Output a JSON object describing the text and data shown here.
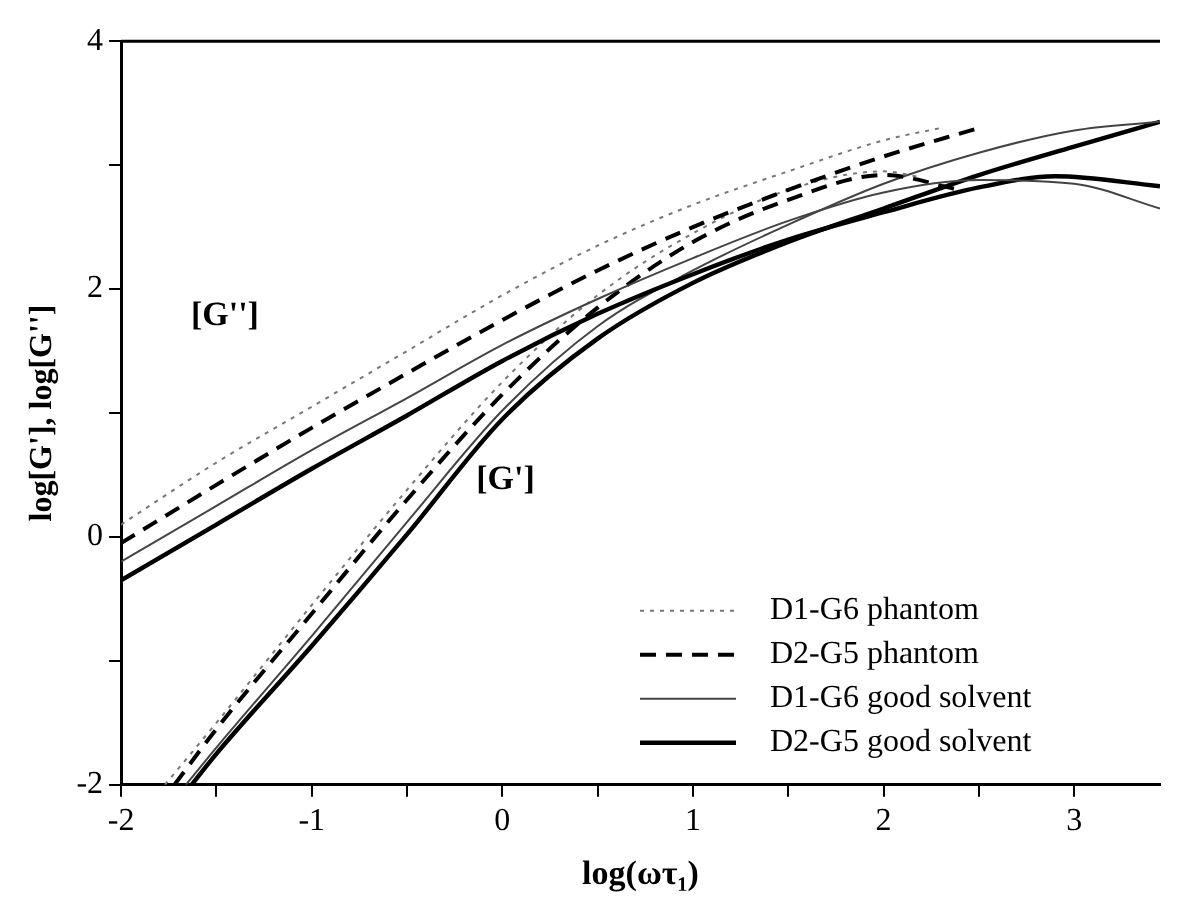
{
  "chart_data": {
    "type": "line",
    "xlabel": "log(ωτ₁)",
    "ylabel": "log[G'], log[G'']",
    "xlim": [
      -2,
      3.45
    ],
    "xticks": [
      -2,
      {
        "value": -1.5,
        "label": null
      },
      -1,
      {
        "value": -0.5,
        "label": null
      },
      0,
      {
        "value": 0.5,
        "label": null
      },
      1,
      {
        "value": 1.5,
        "label": null
      },
      2,
      {
        "value": 2.5,
        "label": null
      },
      3
    ],
    "ylim": [
      -2,
      4
    ],
    "yticks": [
      -2,
      {
        "value": -1,
        "label": null
      },
      0,
      {
        "value": 1,
        "label": null
      },
      2,
      {
        "value": 3,
        "label": null
      },
      4
    ],
    "grid": false,
    "legend": "bottom right",
    "marker": "none",
    "annotations": [
      "[G'']",
      "[G']"
    ],
    "series": [
      {
        "name": "D1-G6 phantom",
        "color": "#777777",
        "line_style": "dotted",
        "x": [
          -2,
          -1.5,
          -1,
          -0.5,
          0,
          0.5,
          1,
          1.5,
          2,
          2.3
        ],
        "values": [
          0.1,
          0.6,
          1.05,
          1.5,
          1.95,
          2.35,
          2.68,
          2.95,
          3.2,
          3.3
        ]
      },
      {
        "name": "D2-G5 phantom",
        "color": "#000000",
        "line_style": "dashed",
        "x": [
          -2,
          -1.5,
          -1,
          -0.5,
          0,
          0.5,
          1,
          1.5,
          2,
          2.5
        ],
        "values": [
          -0.05,
          0.42,
          0.88,
          1.32,
          1.75,
          2.15,
          2.5,
          2.8,
          3.07,
          3.3
        ]
      },
      {
        "name": "D1-G6 good solvent",
        "color": "#444444",
        "line_style": "solid",
        "x": [
          -2,
          -1.5,
          -1,
          -0.5,
          0,
          0.5,
          1,
          1.5,
          2,
          2.5,
          3,
          3.45
        ],
        "values": [
          -0.2,
          0.25,
          0.7,
          1.12,
          1.55,
          1.92,
          2.25,
          2.55,
          2.78,
          2.88,
          2.85,
          2.65
        ]
      },
      {
        "name": "D2-G5 good solvent",
        "color": "#000000",
        "line_style": "solid",
        "x": [
          -2,
          -1.5,
          -1,
          -0.5,
          0,
          0.5,
          1,
          1.5,
          2,
          2.5,
          2.9,
          3.45
        ],
        "values": [
          -0.35,
          0.1,
          0.55,
          0.98,
          1.42,
          1.8,
          2.12,
          2.4,
          2.62,
          2.82,
          2.91,
          2.83
        ]
      },
      {
        "color": "#777777",
        "line_style": "dotted",
        "x": [
          -1.77,
          -1.5,
          -1,
          -0.5,
          0,
          0.5,
          1,
          1.5,
          2,
          2.2
        ],
        "values": [
          -2,
          -1.5,
          -0.55,
          0.38,
          1.25,
          1.95,
          2.45,
          2.8,
          2.95,
          2.9
        ]
      },
      {
        "color": "#000000",
        "line_style": "dashed",
        "x": [
          -1.72,
          -1.5,
          -1,
          -0.5,
          0,
          0.5,
          1,
          1.5,
          2,
          2.4
        ],
        "values": [
          -2,
          -1.55,
          -0.62,
          0.3,
          1.15,
          1.85,
          2.38,
          2.72,
          2.92,
          2.8
        ]
      },
      {
        "color": "#444444",
        "line_style": "solid",
        "x": [
          -1.66,
          -1.5,
          -1,
          -0.5,
          0,
          0.5,
          1,
          1.5,
          2,
          2.5,
          3,
          3.45
        ],
        "values": [
          -2,
          -1.7,
          -0.8,
          0.12,
          1.02,
          1.7,
          2.15,
          2.52,
          2.85,
          3.1,
          3.28,
          3.35
        ]
      },
      {
        "color": "#000000",
        "line_style": "solid",
        "x": [
          -1.63,
          -1.5,
          -1,
          -0.5,
          0,
          0.5,
          1,
          1.5,
          2,
          2.5,
          3,
          3.45
        ],
        "values": [
          -2,
          -1.75,
          -0.88,
          0.02,
          0.95,
          1.6,
          2.05,
          2.38,
          2.65,
          2.92,
          3.15,
          3.35
        ]
      }
    ]
  }
}
